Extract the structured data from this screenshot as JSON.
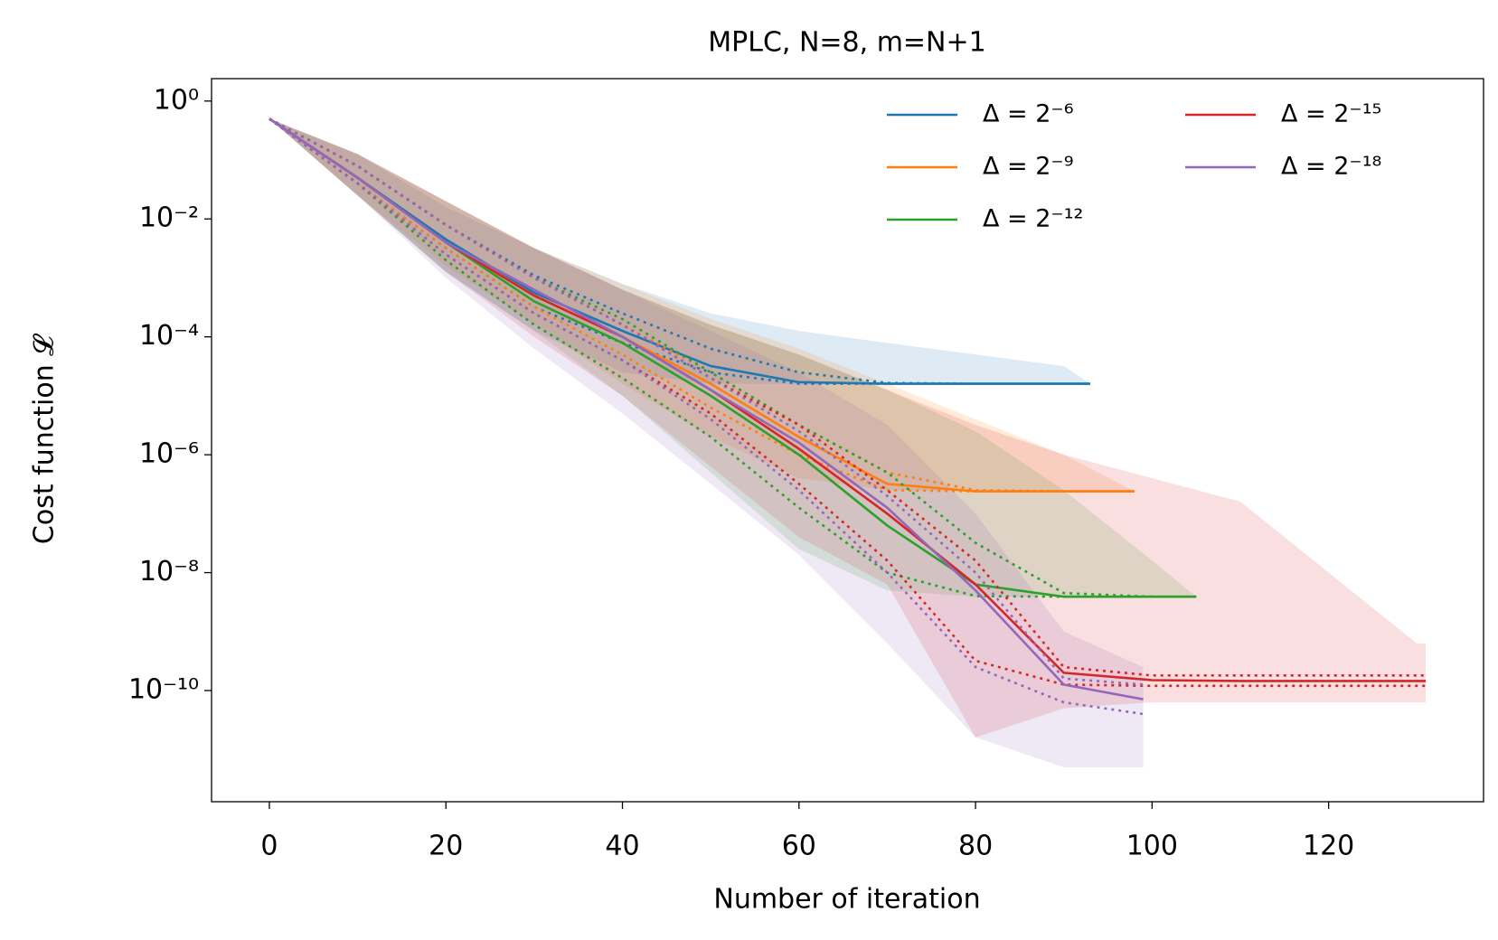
{
  "chart_data": {
    "type": "line",
    "title": "MPLC, N=8, m=N+1",
    "x_label": "Number of iteration",
    "y_label": "Cost function 𝓛",
    "xlim": [
      -6.55,
      137.55
    ],
    "xticks": [
      0,
      20,
      40,
      60,
      80,
      100,
      120
    ],
    "ylim": [
      1.3e-12,
      2.4
    ],
    "log_y": true,
    "yticks": [
      {
        "value": 1,
        "label": "10⁰"
      },
      {
        "value": 0.01,
        "label": "10⁻²"
      },
      {
        "value": 0.0001,
        "label": "10⁻⁴"
      },
      {
        "value": 1e-06,
        "label": "10⁻⁶"
      },
      {
        "value": 1e-08,
        "label": "10⁻⁸"
      },
      {
        "value": 1e-10,
        "label": "10⁻¹⁰"
      }
    ],
    "legend": "upper right",
    "legend_columns": 2,
    "series": [
      {
        "name": "Δ = 2⁻⁶",
        "color": "#1f77b4",
        "x": [
          0,
          10,
          20,
          30,
          40,
          50,
          60,
          70,
          80,
          90,
          93
        ],
        "values": [
          0.5,
          0.05,
          0.0045,
          0.00056,
          0.000126,
          3.2e-05,
          1.7e-05,
          1.6e-05,
          1.6e-05,
          1.6e-05,
          1.6e-05
        ],
        "q_upper": [
          0.5,
          0.079,
          0.0079,
          0.0011,
          0.00025,
          6.3e-05,
          2.5e-05,
          1.65e-05,
          1.6e-05,
          1.6e-05,
          1.6e-05
        ],
        "q_lower": [
          0.5,
          0.04,
          0.0032,
          0.00032,
          7.9e-05,
          2.5e-05,
          1.6e-05,
          1.6e-05,
          1.6e-05,
          1.6e-05,
          1.6e-05
        ],
        "band_upper": [
          0.5,
          0.126,
          0.016,
          0.0032,
          0.00079,
          0.00025,
          0.000126,
          7.9e-05,
          5e-05,
          3.2e-05,
          1.6e-05
        ],
        "band_lower": [
          0.5,
          0.025,
          0.00126,
          0.000126,
          2.5e-05,
          1.6e-05,
          1.6e-05,
          1.6e-05,
          1.6e-05,
          1.6e-05,
          1.6e-05
        ]
      },
      {
        "name": "Δ = 2⁻⁹",
        "color": "#ff7f0e",
        "x": [
          0,
          10,
          20,
          30,
          40,
          50,
          60,
          70,
          80,
          90,
          98
        ],
        "values": [
          0.5,
          0.05,
          0.004,
          0.0005,
          0.0001,
          1.6e-05,
          2e-06,
          3.2e-07,
          2.4e-07,
          2.4e-07,
          2.4e-07
        ],
        "q_upper": [
          0.5,
          0.079,
          0.0079,
          0.001,
          0.00016,
          2.5e-05,
          3.2e-06,
          5e-07,
          2.5e-07,
          2.4e-07,
          2.4e-07
        ],
        "q_lower": [
          0.5,
          0.04,
          0.0032,
          0.00032,
          5e-05,
          6.3e-06,
          1e-06,
          2.5e-07,
          2.4e-07,
          2.4e-07,
          2.4e-07
        ],
        "band_upper": [
          0.5,
          0.126,
          0.02,
          0.0032,
          0.00079,
          0.0002,
          6.3e-05,
          1.6e-05,
          4e-06,
          1e-06,
          2.4e-07
        ],
        "band_lower": [
          0.5,
          0.025,
          0.0016,
          0.00016,
          1.6e-05,
          2e-06,
          4e-07,
          2.5e-07,
          2.4e-07,
          2.4e-07,
          2.4e-07
        ]
      },
      {
        "name": "Δ = 2⁻¹²",
        "color": "#2ca02c",
        "x": [
          0,
          10,
          20,
          30,
          40,
          50,
          60,
          70,
          80,
          90,
          100,
          105
        ],
        "values": [
          0.5,
          0.05,
          0.004,
          0.0004,
          7.9e-05,
          1e-05,
          1e-06,
          6.3e-08,
          6.3e-09,
          3.9e-09,
          3.9e-09,
          3.9e-09
        ],
        "q_upper": [
          0.5,
          0.079,
          0.0079,
          0.001,
          0.0002,
          2.5e-05,
          3.2e-06,
          5e-07,
          3.2e-08,
          4.5e-09,
          3.9e-09,
          3.9e-09
        ],
        "q_lower": [
          0.5,
          0.04,
          0.002,
          0.00016,
          2e-05,
          2e-06,
          1.26e-07,
          1e-08,
          4e-09,
          3.9e-09,
          3.9e-09,
          3.9e-09
        ],
        "band_upper": [
          0.5,
          0.126,
          0.02,
          0.0032,
          0.00063,
          0.00016,
          5e-05,
          1.26e-05,
          2.5e-06,
          2.5e-07,
          1.6e-08,
          3.9e-09
        ],
        "band_lower": [
          0.5,
          0.025,
          0.00126,
          0.000126,
          1e-05,
          5e-07,
          2.5e-08,
          5e-09,
          3.9e-09,
          3.9e-09,
          3.9e-09,
          3.9e-09
        ]
      },
      {
        "name": "Δ = 2⁻¹⁵",
        "color": "#d62728",
        "x": [
          0,
          10,
          20,
          30,
          40,
          50,
          60,
          70,
          80,
          90,
          100,
          110,
          120,
          130,
          131
        ],
        "values": [
          0.5,
          0.05,
          0.004,
          0.0005,
          0.0001,
          1.26e-05,
          1.26e-06,
          1e-07,
          6.3e-09,
          2e-10,
          1.5e-10,
          1.45e-10,
          1.45e-10,
          1.45e-10,
          1.45e-10
        ],
        "q_upper": [
          0.5,
          0.079,
          0.0079,
          0.001,
          0.00016,
          2e-05,
          3.2e-06,
          2.5e-07,
          1.6e-08,
          2.5e-10,
          1.8e-10,
          1.8e-10,
          1.8e-10,
          1.8e-10,
          1.8e-10
        ],
        "q_lower": [
          0.5,
          0.04,
          0.0025,
          0.00025,
          4e-05,
          5e-06,
          3.2e-07,
          1.6e-08,
          3.2e-10,
          1.26e-10,
          1.2e-10,
          1.2e-10,
          1.2e-10,
          1.2e-10,
          1.2e-10
        ],
        "band_upper": [
          0.5,
          0.126,
          0.02,
          0.0032,
          0.00063,
          0.00016,
          5e-05,
          1.26e-05,
          3.2e-06,
          1e-06,
          4e-07,
          1.6e-07,
          1e-08,
          6.3e-10,
          6.3e-10
        ],
        "band_lower": [
          0.5,
          0.025,
          0.00126,
          0.0001,
          1e-05,
          6.3e-07,
          4e-08,
          6.3e-09,
          1.6e-11,
          5e-11,
          6.3e-11,
          6.3e-11,
          6.3e-11,
          6.3e-11,
          6.3e-11
        ]
      },
      {
        "name": "Δ = 2⁻¹⁸",
        "color": "#9467bd",
        "x": [
          0,
          10,
          20,
          30,
          40,
          50,
          60,
          70,
          80,
          90,
          99
        ],
        "values": [
          0.5,
          0.05,
          0.004,
          0.00063,
          0.0001,
          1.26e-05,
          1.6e-06,
          1.26e-07,
          5e-09,
          1.26e-10,
          7.1e-11
        ],
        "q_upper": [
          0.5,
          0.079,
          0.0079,
          0.001,
          0.00016,
          2e-05,
          2.5e-06,
          2e-07,
          1e-08,
          1.6e-10,
          1.26e-10
        ],
        "q_lower": [
          0.5,
          0.04,
          0.0025,
          0.00025,
          4e-05,
          4e-06,
          2.5e-07,
          1e-08,
          2.5e-10,
          6.3e-11,
          4e-11
        ],
        "band_upper": [
          0.5,
          0.126,
          0.02,
          0.0032,
          0.00063,
          0.000126,
          2.5e-05,
          3.2e-06,
          1e-07,
          1e-09,
          2.5e-10
        ],
        "band_lower": [
          0.5,
          0.025,
          0.001,
          6.3e-05,
          5e-06,
          3.2e-07,
          2e-08,
          6.3e-10,
          1.6e-11,
          5e-12,
          5e-12
        ]
      }
    ]
  }
}
